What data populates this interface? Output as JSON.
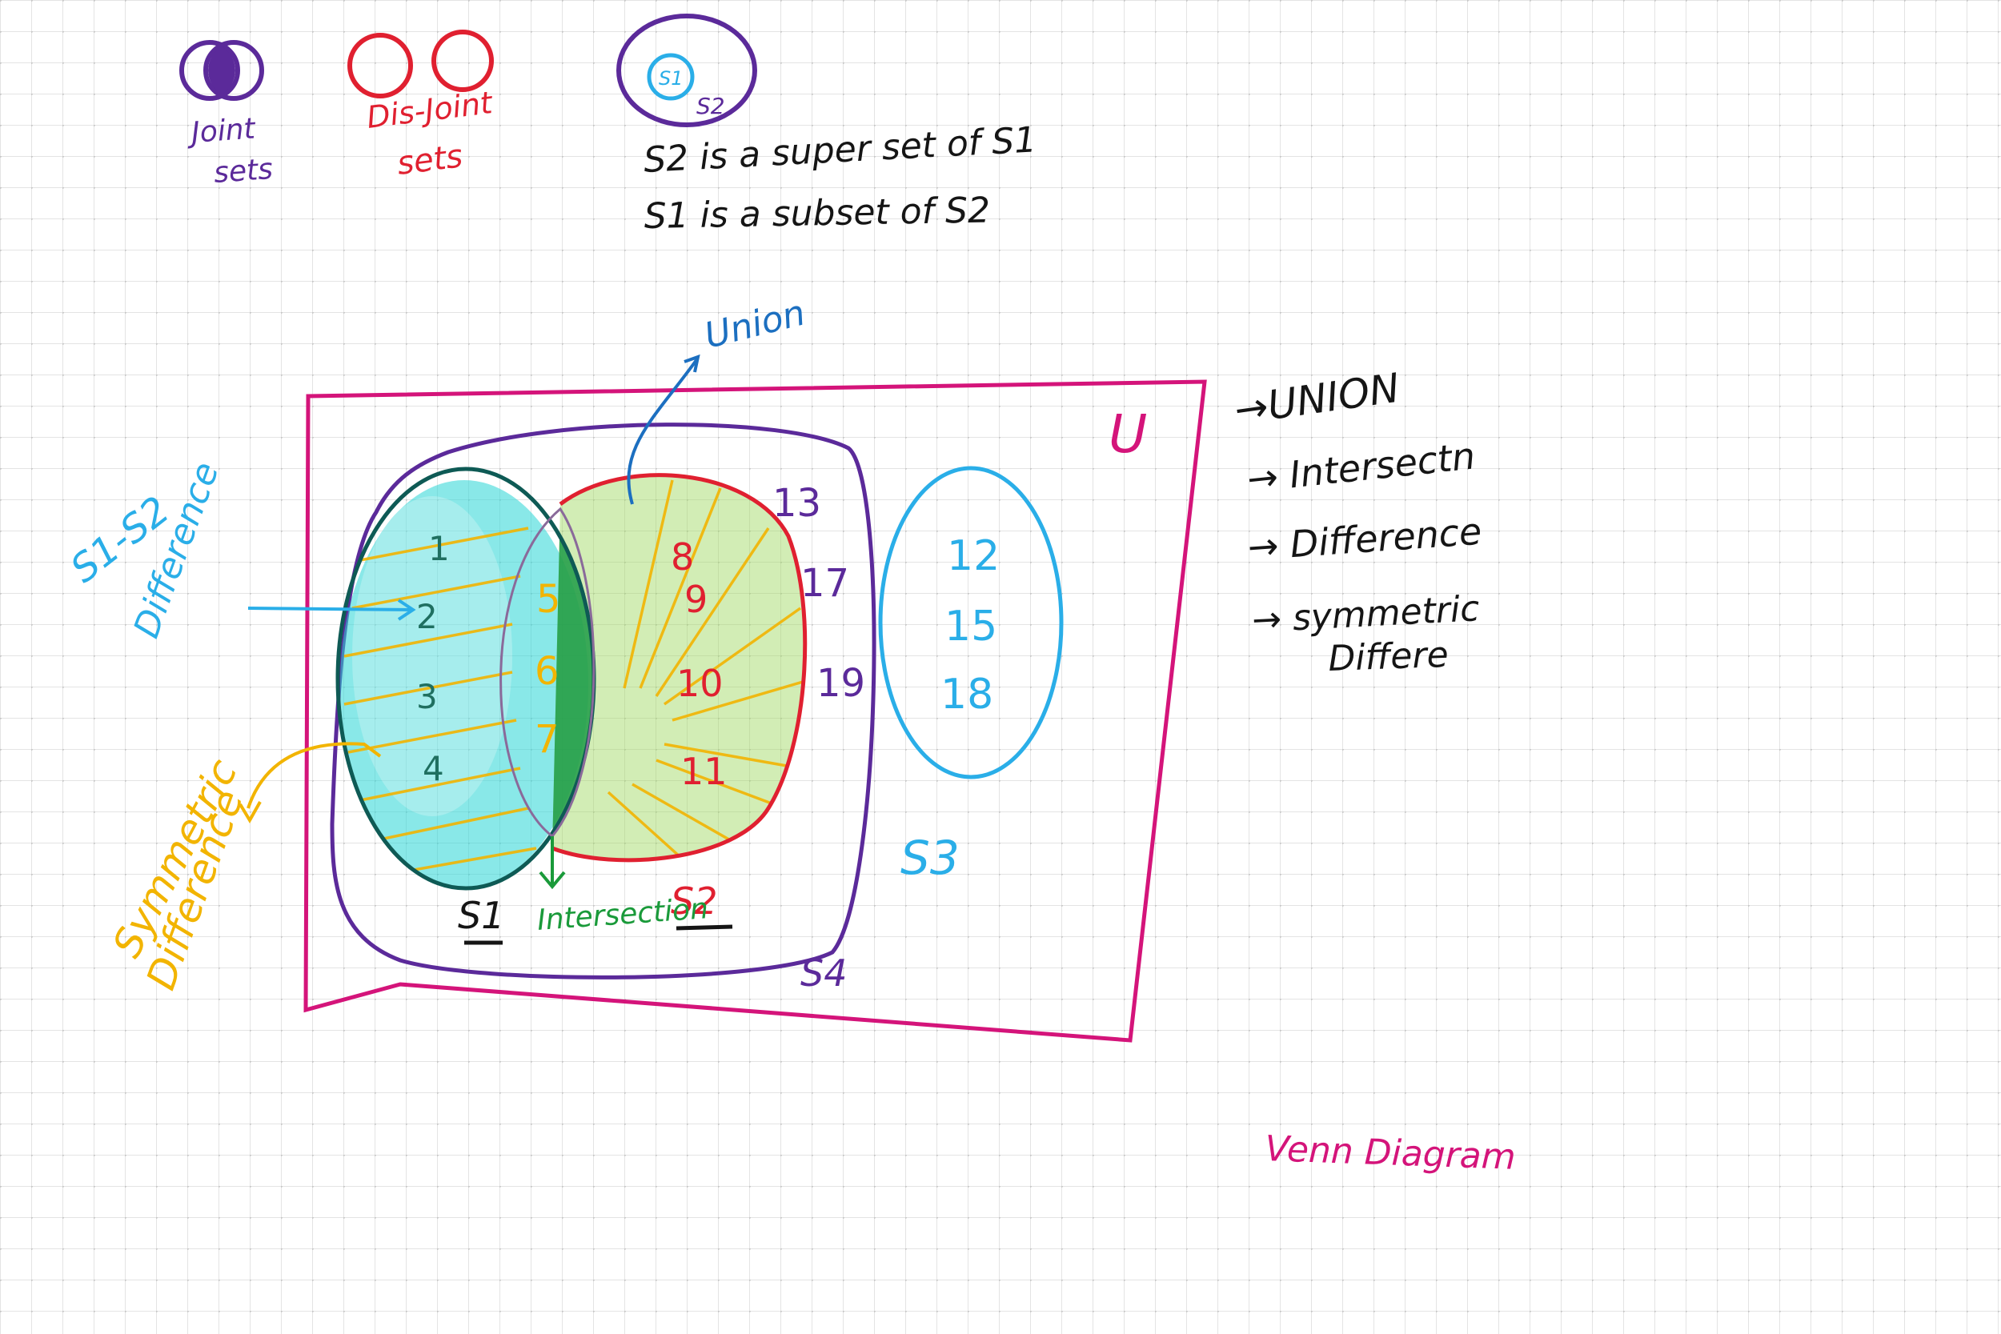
{
  "legend": {
    "joint_label_1": "Joint",
    "joint_label_2": "sets",
    "disjoint_label_1": "Dis-Joint",
    "disjoint_label_2": "sets",
    "subset_inner": "S1",
    "subset_outer": "S2",
    "superset_line": "S2 is a super set of S1",
    "subset_line": "S1 is a subset of S2"
  },
  "venn": {
    "universe_label": "U",
    "s1_label": "S1",
    "s2_label": "S2",
    "s3_label": "S3",
    "s4_label": "S4",
    "s1_only": [
      "1",
      "2",
      "3",
      "4"
    ],
    "intersection": [
      "5",
      "6",
      "7"
    ],
    "s2_only": [
      "8",
      "9",
      "10",
      "11"
    ],
    "s4_only": [
      "13",
      "17",
      "19"
    ],
    "s3_elements": [
      "12",
      "15",
      "18"
    ]
  },
  "annotations": {
    "union": "Union",
    "intersection": "Intersection",
    "difference_1": "S1-S2",
    "difference_2": "Difference",
    "symmetric_1": "Symmetric",
    "symmetric_2": "Difference"
  },
  "operations": {
    "items": [
      "→UNION",
      "→ Intersectn",
      "→ Difference",
      "→ symmetric",
      "Differe"
    ]
  },
  "footer": {
    "title": "Venn Diagram"
  },
  "colors": {
    "purple": "#5b2a9a",
    "red": "#e02030",
    "magenta": "#d4147a",
    "cyan": "#2aaee8",
    "orange": "#f2b400",
    "green": "#1a9a3a",
    "blue": "#1c6fc0",
    "dark": "#151515",
    "grid": "#dcdcdc"
  }
}
